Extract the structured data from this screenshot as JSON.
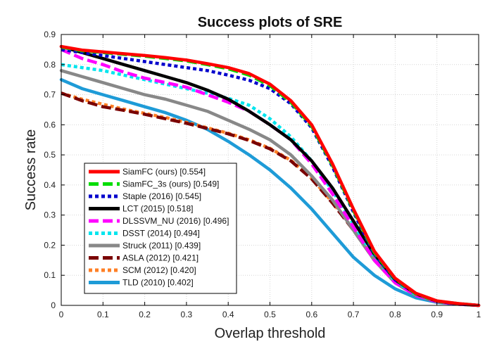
{
  "chart_data": {
    "type": "line",
    "title": "Success plots of SRE",
    "xlabel": "Overlap threshold",
    "ylabel": "Success rate",
    "xlim": [
      0,
      1
    ],
    "ylim": [
      0,
      0.9
    ],
    "xticks": [
      "0",
      "0.1",
      "0.2",
      "0.3",
      "0.4",
      "0.5",
      "0.6",
      "0.7",
      "0.8",
      "0.9",
      "1"
    ],
    "yticks": [
      "0",
      "0.1",
      "0.2",
      "0.3",
      "0.4",
      "0.5",
      "0.6",
      "0.7",
      "0.8",
      "0.9"
    ],
    "grid": true,
    "legend_position": "lower-left",
    "x": [
      0,
      0.05,
      0.1,
      0.15,
      0.2,
      0.25,
      0.3,
      0.35,
      0.4,
      0.45,
      0.5,
      0.55,
      0.6,
      0.65,
      0.7,
      0.75,
      0.8,
      0.85,
      0.9,
      0.95,
      1.0
    ],
    "series": [
      {
        "name": "SiamFC (ours) [0.554]",
        "color": "#ff0000",
        "style": "solid",
        "values": [
          0.86,
          0.848,
          0.842,
          0.836,
          0.83,
          0.823,
          0.815,
          0.803,
          0.79,
          0.77,
          0.735,
          0.68,
          0.6,
          0.47,
          0.32,
          0.18,
          0.09,
          0.04,
          0.015,
          0.006,
          0.0
        ]
      },
      {
        "name": "SiamFC_3s (ours) [0.549]",
        "color": "#00dd00",
        "style": "dashed",
        "values": [
          0.858,
          0.846,
          0.84,
          0.834,
          0.828,
          0.82,
          0.812,
          0.8,
          0.786,
          0.765,
          0.73,
          0.675,
          0.595,
          0.465,
          0.315,
          0.175,
          0.088,
          0.038,
          0.014,
          0.006,
          0.0
        ]
      },
      {
        "name": "Staple (2016) [0.545]",
        "color": "#0000cc",
        "style": "dotted",
        "values": [
          0.85,
          0.84,
          0.83,
          0.82,
          0.81,
          0.8,
          0.79,
          0.78,
          0.765,
          0.748,
          0.72,
          0.67,
          0.59,
          0.46,
          0.31,
          0.17,
          0.085,
          0.038,
          0.014,
          0.005,
          0.0
        ]
      },
      {
        "name": "LCT (2015) [0.518]",
        "color": "#000000",
        "style": "solid",
        "values": [
          0.86,
          0.84,
          0.82,
          0.8,
          0.78,
          0.76,
          0.74,
          0.715,
          0.685,
          0.645,
          0.6,
          0.55,
          0.48,
          0.39,
          0.28,
          0.17,
          0.085,
          0.038,
          0.014,
          0.005,
          0.0
        ]
      },
      {
        "name": "DLSSVM_NU (2016) [0.496]",
        "color": "#ff00ff",
        "style": "dashed",
        "values": [
          0.85,
          0.82,
          0.8,
          0.775,
          0.755,
          0.74,
          0.725,
          0.7,
          0.675,
          0.645,
          0.6,
          0.55,
          0.47,
          0.37,
          0.26,
          0.15,
          0.075,
          0.033,
          0.012,
          0.004,
          0.0
        ]
      },
      {
        "name": "DSST (2014) [0.494]",
        "color": "#00e5ee",
        "style": "dotted",
        "values": [
          0.8,
          0.79,
          0.78,
          0.765,
          0.75,
          0.735,
          0.72,
          0.705,
          0.688,
          0.665,
          0.62,
          0.56,
          0.48,
          0.38,
          0.27,
          0.16,
          0.08,
          0.035,
          0.013,
          0.005,
          0.0
        ]
      },
      {
        "name": "Struck (2011) [0.439]",
        "color": "#888888",
        "style": "solid",
        "values": [
          0.78,
          0.76,
          0.74,
          0.72,
          0.7,
          0.685,
          0.665,
          0.645,
          0.615,
          0.585,
          0.55,
          0.5,
          0.43,
          0.35,
          0.25,
          0.15,
          0.075,
          0.033,
          0.012,
          0.004,
          0.0
        ]
      },
      {
        "name": "ASLA (2012) [0.421]",
        "color": "#7a0000",
        "style": "dashed",
        "values": [
          0.705,
          0.68,
          0.66,
          0.648,
          0.635,
          0.62,
          0.605,
          0.588,
          0.57,
          0.548,
          0.52,
          0.48,
          0.42,
          0.34,
          0.25,
          0.15,
          0.075,
          0.033,
          0.012,
          0.004,
          0.0
        ]
      },
      {
        "name": "SCM (2012) [0.420]",
        "color": "#ff7f24",
        "style": "dotted",
        "values": [
          0.705,
          0.685,
          0.668,
          0.652,
          0.638,
          0.624,
          0.608,
          0.59,
          0.572,
          0.55,
          0.522,
          0.482,
          0.422,
          0.342,
          0.252,
          0.152,
          0.077,
          0.034,
          0.012,
          0.004,
          0.0
        ]
      },
      {
        "name": "TLD (2010) [0.402]",
        "color": "#1e9bd7",
        "style": "solid",
        "values": [
          0.75,
          0.72,
          0.7,
          0.68,
          0.66,
          0.64,
          0.615,
          0.585,
          0.545,
          0.5,
          0.45,
          0.39,
          0.32,
          0.24,
          0.16,
          0.1,
          0.055,
          0.025,
          0.01,
          0.004,
          0.0
        ]
      }
    ]
  }
}
